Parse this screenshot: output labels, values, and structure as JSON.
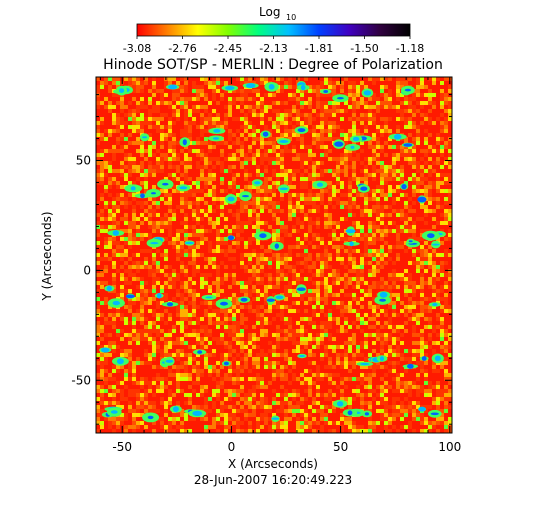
{
  "chart_data": {
    "type": "heatmap",
    "title": "Hinode SOT/SP - MERLIN : Degree of Polarization",
    "xlabel": "X (Arcseconds)",
    "ylabel": "Y (Arcseconds)",
    "timestamp": "28-Jun-2007 16:20:49.223",
    "colorbar": {
      "label_main": "Log",
      "label_sub": "10",
      "tick_labels": [
        "-3.08",
        "-2.76",
        "-2.45",
        "-2.13",
        "-1.81",
        "-1.50",
        "-1.18"
      ],
      "range": [
        -3.08,
        -1.18
      ],
      "colors": [
        "#ff0000",
        "#ff8000",
        "#ffff00",
        "#80ff00",
        "#00ff80",
        "#00c0ff",
        "#0040ff",
        "#4000c0",
        "#300040",
        "#000000"
      ]
    },
    "xlim": [
      -62,
      101
    ],
    "ylim": [
      -74,
      88
    ],
    "x_ticks": [
      -50,
      0,
      50,
      100
    ],
    "y_ticks": [
      -50,
      0,
      50
    ],
    "x_tick_labels": [
      "-50",
      "0",
      "50",
      "100"
    ],
    "y_tick_labels": [
      "-50",
      "0",
      "50"
    ],
    "background_level": -3.0,
    "colors": {
      "low": "#ff2000",
      "mid": "#ffe000",
      "high": "#00c0ff"
    }
  }
}
